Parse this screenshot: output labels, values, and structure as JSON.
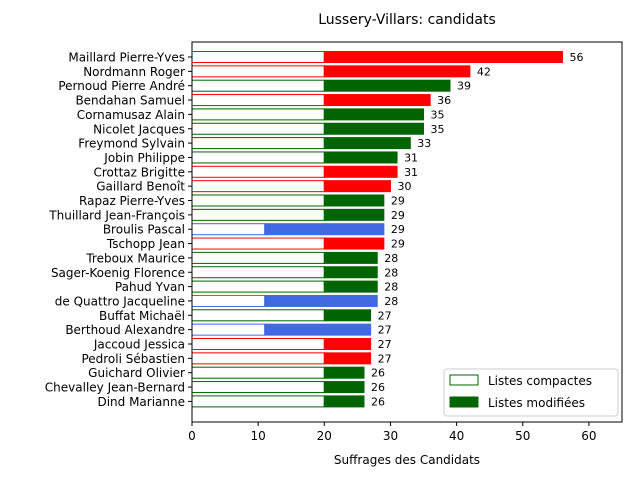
{
  "chart_data": {
    "type": "bar",
    "orientation": "horizontal",
    "stacked": true,
    "title": "Lussery-Villars: candidats",
    "xlabel": "Suffrages des Candidats",
    "ylabel": "",
    "xlim": [
      0,
      65
    ],
    "xticks": [
      0,
      10,
      20,
      30,
      40,
      50,
      60
    ],
    "grid": false,
    "legend_position": "lower-right",
    "legend": [
      {
        "label": "Listes compactes",
        "style": "outline",
        "color": "#006400"
      },
      {
        "label": "Listes modifiées",
        "style": "filled",
        "color": "#006400"
      }
    ],
    "colors": {
      "red": "#ff0000",
      "green": "#006400",
      "blue": "#4169e1"
    },
    "candidates": [
      {
        "name": "Maillard Pierre-Yves",
        "compactes": 20,
        "total": 56,
        "color": "red"
      },
      {
        "name": "Nordmann Roger",
        "compactes": 20,
        "total": 42,
        "color": "red"
      },
      {
        "name": "Pernoud Pierre André",
        "compactes": 20,
        "total": 39,
        "color": "green"
      },
      {
        "name": "Bendahan Samuel",
        "compactes": 20,
        "total": 36,
        "color": "red"
      },
      {
        "name": "Cornamusaz Alain",
        "compactes": 20,
        "total": 35,
        "color": "green"
      },
      {
        "name": "Nicolet Jacques",
        "compactes": 20,
        "total": 35,
        "color": "green"
      },
      {
        "name": "Freymond Sylvain",
        "compactes": 20,
        "total": 33,
        "color": "green"
      },
      {
        "name": "Jobin Philippe",
        "compactes": 20,
        "total": 31,
        "color": "green"
      },
      {
        "name": "Crottaz Brigitte",
        "compactes": 20,
        "total": 31,
        "color": "red"
      },
      {
        "name": "Gaillard Benoît",
        "compactes": 20,
        "total": 30,
        "color": "red"
      },
      {
        "name": "Rapaz Pierre-Yves",
        "compactes": 20,
        "total": 29,
        "color": "green"
      },
      {
        "name": "Thuillard Jean-François",
        "compactes": 20,
        "total": 29,
        "color": "green"
      },
      {
        "name": "Broulis Pascal",
        "compactes": 11,
        "total": 29,
        "color": "blue"
      },
      {
        "name": "Tschopp Jean",
        "compactes": 20,
        "total": 29,
        "color": "red"
      },
      {
        "name": "Treboux Maurice",
        "compactes": 20,
        "total": 28,
        "color": "green"
      },
      {
        "name": "Sager-Koenig Florence",
        "compactes": 20,
        "total": 28,
        "color": "green"
      },
      {
        "name": "Pahud Yvan",
        "compactes": 20,
        "total": 28,
        "color": "green"
      },
      {
        "name": "de Quattro Jacqueline",
        "compactes": 11,
        "total": 28,
        "color": "blue"
      },
      {
        "name": "Buffat Michaël",
        "compactes": 20,
        "total": 27,
        "color": "green"
      },
      {
        "name": "Berthoud Alexandre",
        "compactes": 11,
        "total": 27,
        "color": "blue"
      },
      {
        "name": "Jaccoud Jessica",
        "compactes": 20,
        "total": 27,
        "color": "red"
      },
      {
        "name": "Pedroli Sébastien",
        "compactes": 20,
        "total": 27,
        "color": "red"
      },
      {
        "name": "Guichard Olivier",
        "compactes": 20,
        "total": 26,
        "color": "green"
      },
      {
        "name": "Chevalley Jean-Bernard",
        "compactes": 20,
        "total": 26,
        "color": "green"
      },
      {
        "name": "Dind Marianne",
        "compactes": 20,
        "total": 26,
        "color": "green"
      }
    ]
  }
}
